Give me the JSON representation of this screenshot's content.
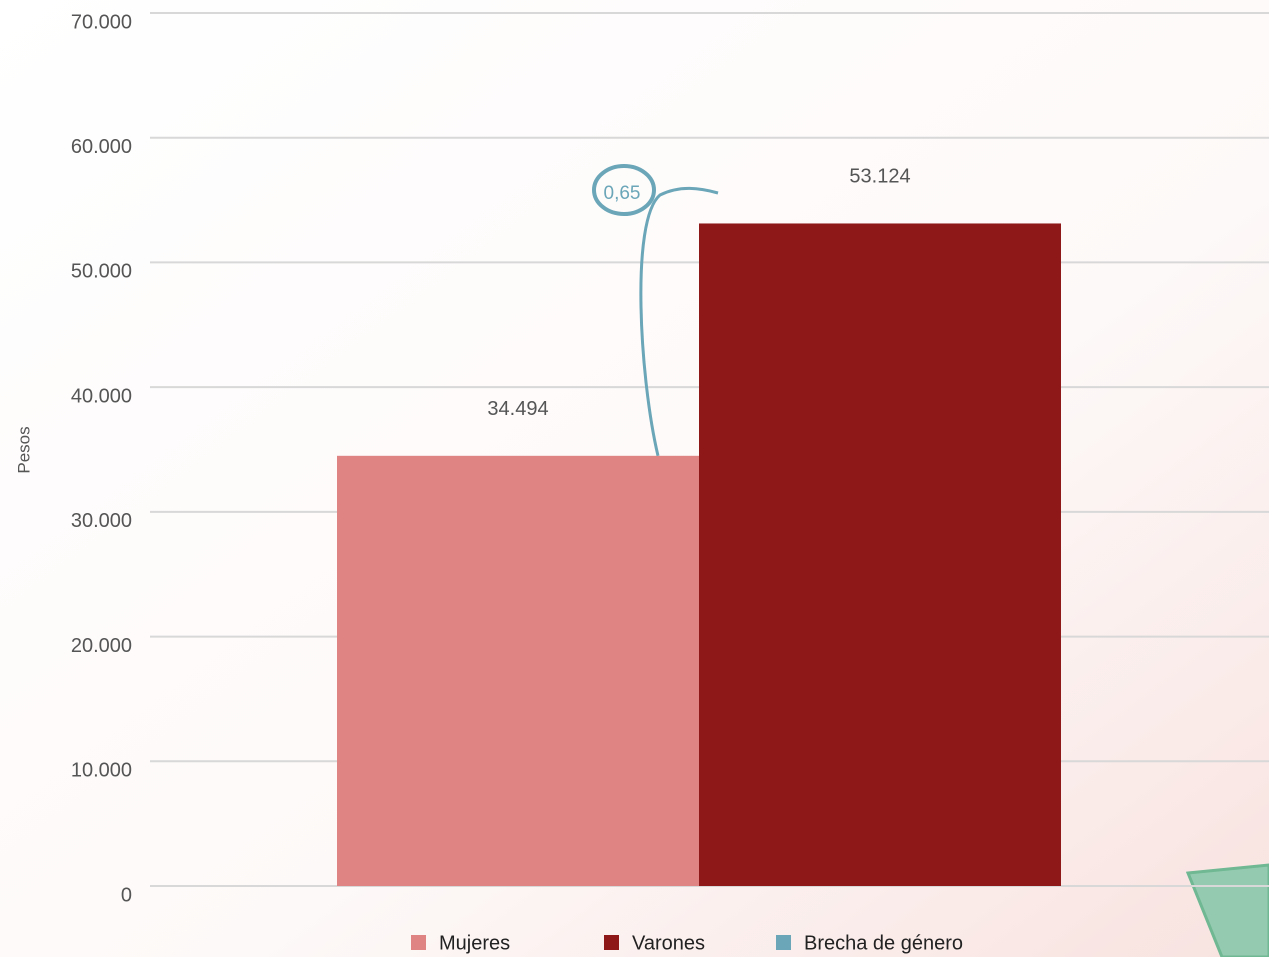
{
  "chart_data": {
    "type": "bar",
    "y_label": "Pesos",
    "categories": [
      null
    ],
    "series": [
      {
        "name": "Mujeres",
        "color": "#e08383",
        "values": [
          34494
        ],
        "value_labels": [
          "34.494"
        ]
      },
      {
        "name": "Varones",
        "color": "#8e1818",
        "values": [
          53124
        ],
        "value_labels": [
          "53.124"
        ]
      },
      {
        "name": "Brecha de género",
        "color": "#6aa6b8",
        "values": [
          0.65
        ],
        "value_labels": [
          "0,65"
        ]
      }
    ],
    "ylim": [
      0,
      70000
    ],
    "yticks": [
      0,
      {
        "value": 10000,
        "label": "10.000"
      },
      {
        "value": 20000,
        "label": "20.000"
      },
      {
        "value": 30000,
        "label": "30.000"
      },
      {
        "value": 40000,
        "label": "40.000"
      },
      {
        "value": 50000,
        "label": "50.000"
      },
      {
        "value": 60000,
        "label": "60.000"
      },
      {
        "value": 70000,
        "label": "70.000"
      }
    ],
    "grid": true,
    "legend": "bottom"
  }
}
